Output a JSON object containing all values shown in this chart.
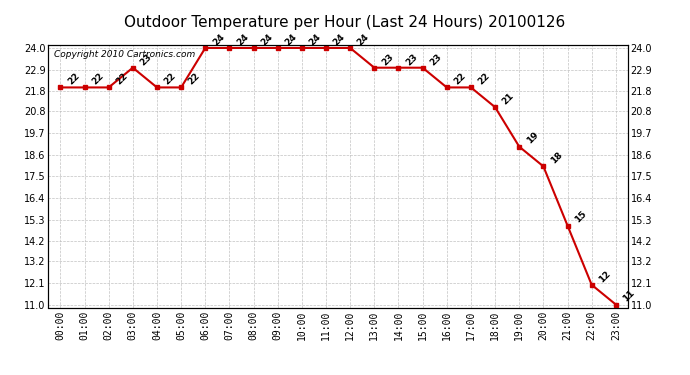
{
  "title": "Outdoor Temperature per Hour (Last 24 Hours) 20100126",
  "copyright_text": "Copyright 2010 Cartronics.com",
  "hours": [
    "00:00",
    "01:00",
    "02:00",
    "03:00",
    "04:00",
    "05:00",
    "06:00",
    "07:00",
    "08:00",
    "09:00",
    "10:00",
    "11:00",
    "12:00",
    "13:00",
    "14:00",
    "15:00",
    "16:00",
    "17:00",
    "18:00",
    "19:00",
    "20:00",
    "21:00",
    "22:00",
    "23:00"
  ],
  "temperatures": [
    22,
    22,
    22,
    23,
    22,
    22,
    24,
    24,
    24,
    24,
    24,
    24,
    24,
    23,
    23,
    23,
    22,
    22,
    21,
    19,
    18,
    15,
    12,
    11
  ],
  "line_color": "#cc0000",
  "marker_color": "#cc0000",
  "bg_color": "#ffffff",
  "grid_color": "#bbbbbb",
  "ylim_min": 11.0,
  "ylim_max": 24.0,
  "yticks": [
    11.0,
    12.1,
    13.2,
    14.2,
    15.3,
    16.4,
    17.5,
    18.6,
    19.7,
    20.8,
    21.8,
    22.9,
    24.0
  ],
  "title_fontsize": 11,
  "label_fontsize": 6.5,
  "tick_fontsize": 7,
  "copyright_fontsize": 6.5
}
